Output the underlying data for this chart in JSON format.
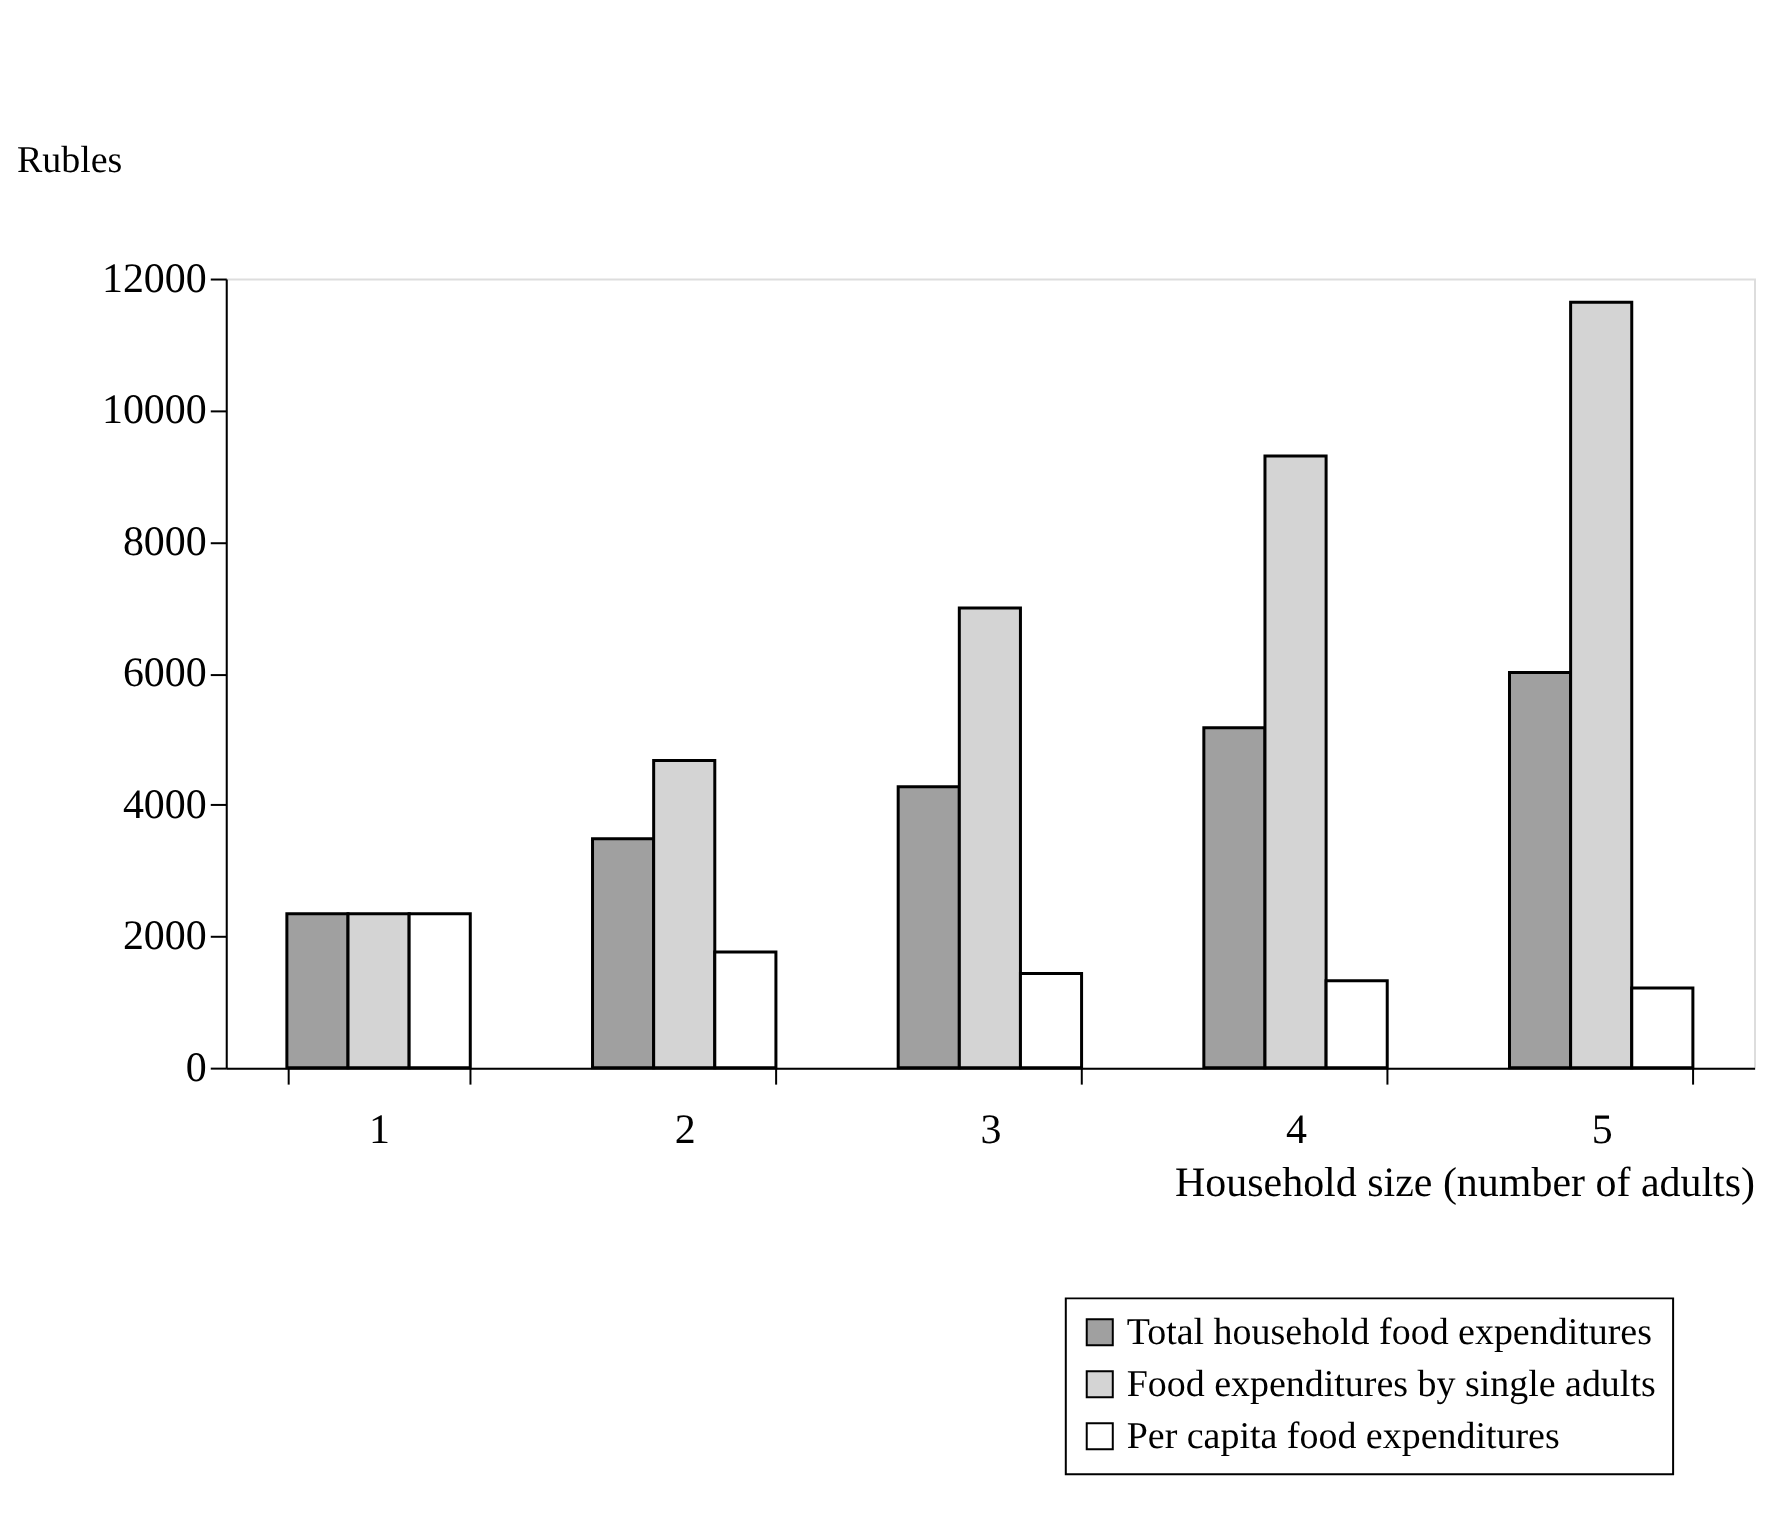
{
  "chart_data": {
    "type": "bar",
    "ylabel": "Rubles",
    "xlabel": "Household size (number of adults)",
    "categories": [
      "1",
      "2",
      "3",
      "4",
      "5"
    ],
    "series": [
      {
        "name": "Total household food expenditures",
        "color": "#a0a0a0",
        "values": [
          2340,
          3480,
          4270,
          5170,
          6010
        ]
      },
      {
        "name": "Food expenditures by single adults",
        "color": "#d4d4d4",
        "values": [
          2340,
          4670,
          6990,
          9300,
          11640
        ]
      },
      {
        "name": "Per capita food expenditures",
        "color": "#ffffff",
        "values": [
          2340,
          1760,
          1430,
          1320,
          1210
        ]
      }
    ],
    "ylim": [
      0,
      12000
    ],
    "yticks": [
      0,
      2000,
      4000,
      6000,
      8000,
      10000,
      12000
    ],
    "grid": false,
    "legend": "bottom right"
  }
}
